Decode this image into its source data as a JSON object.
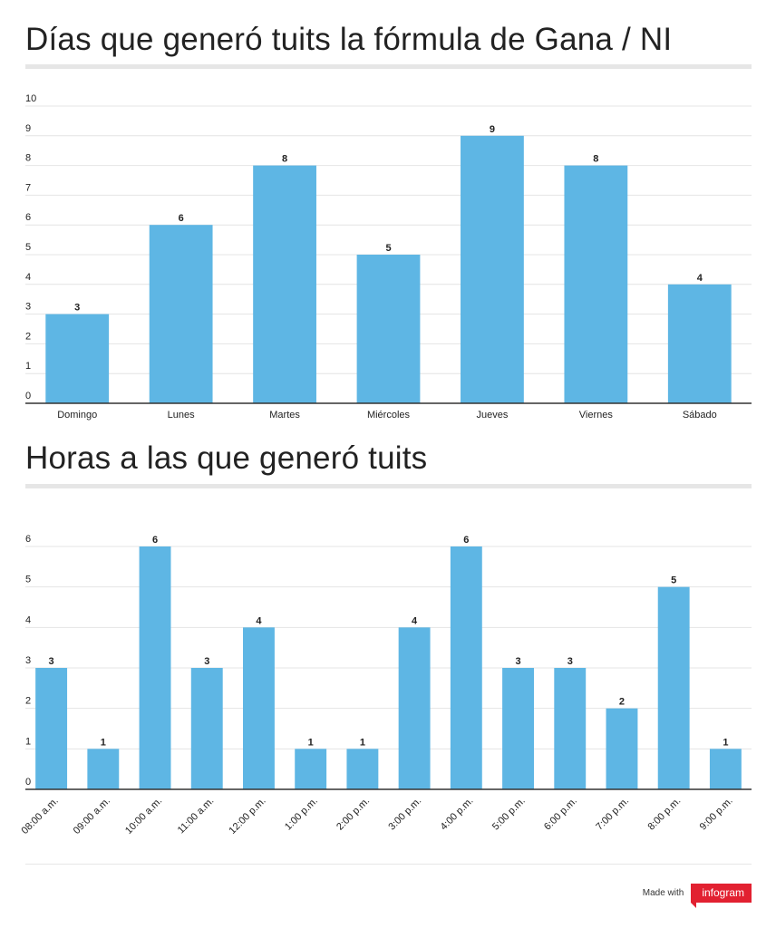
{
  "colors": {
    "bar": "#5eb6e4",
    "grid": "#e4e4e4",
    "axis": "#333333",
    "text": "#222222",
    "brand": "#e22131"
  },
  "chart_data": [
    {
      "type": "bar",
      "title": "Días que generó tuits la fórmula de Gana / NI",
      "categories": [
        "Domingo",
        "Lunes",
        "Martes",
        "Miércoles",
        "Jueves",
        "Viernes",
        "Sábado"
      ],
      "values": [
        3,
        6,
        8,
        5,
        9,
        8,
        4
      ],
      "ylim": [
        0,
        10
      ],
      "yticks": [
        0,
        1,
        2,
        3,
        4,
        5,
        6,
        7,
        8,
        9,
        10
      ],
      "grid": true,
      "data_labels": true
    },
    {
      "type": "bar",
      "title": "Horas a las que generó tuits",
      "categories": [
        "08:00 a.m.",
        "09:00 a.m.",
        "10:00 a.m.",
        "11:00 a.m.",
        "12:00 p.m.",
        "1:00 p.m.",
        "2:00 p.m.",
        "3:00 p.m.",
        "4:00 p.m.",
        "5:00 p.m.",
        "6:00 p.m.",
        "7:00 p.m.",
        "8:00 p.m.",
        "9:00 p.m."
      ],
      "values": [
        3,
        1,
        6,
        3,
        4,
        1,
        1,
        4,
        6,
        3,
        3,
        2,
        5,
        1
      ],
      "ylim": [
        0,
        6
      ],
      "yticks": [
        0,
        1,
        2,
        3,
        4,
        5,
        6
      ],
      "grid": true,
      "data_labels": true,
      "rotated_xlabels": true
    }
  ],
  "footer": {
    "made_with": "Made with",
    "brand": "infogram"
  }
}
